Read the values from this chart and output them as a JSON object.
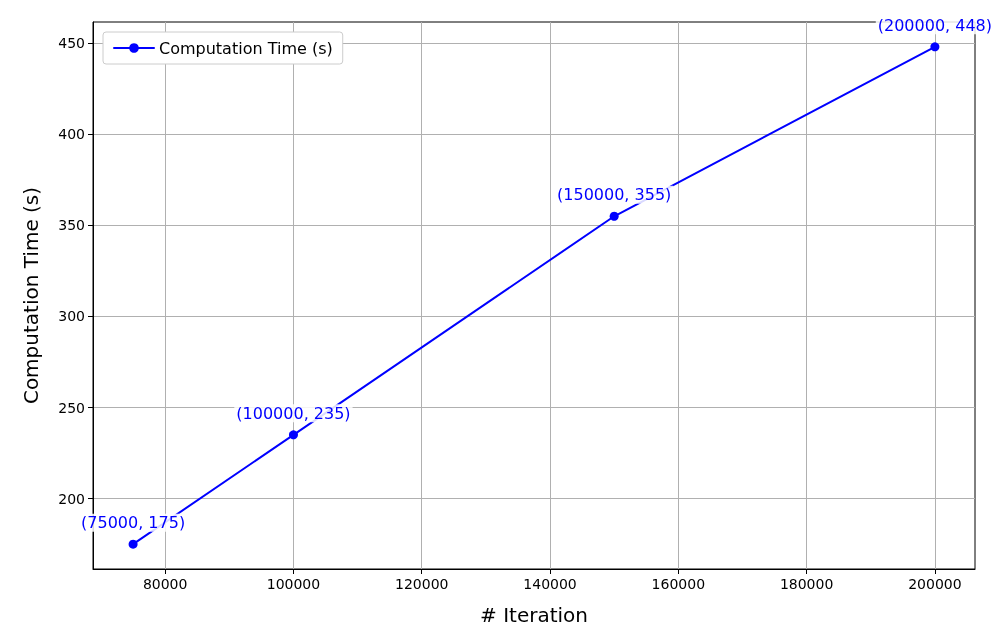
{
  "chart_data": {
    "type": "line",
    "xlabel": "# Iteration",
    "ylabel": "Computation Time (s)",
    "x": [
      75000,
      100000,
      150000,
      200000
    ],
    "series": [
      {
        "name": "Computation Time (s)",
        "color": "#0000ff",
        "values": [
          175,
          235,
          355,
          448
        ],
        "value_labels": [
          "(75000, 175)",
          "(100000, 235)",
          "(150000, 355)",
          "(200000, 448)"
        ]
      }
    ],
    "xlim": [
      68750,
      206250
    ],
    "xticks": [
      80000,
      100000,
      120000,
      140000,
      160000,
      180000,
      200000
    ],
    "ylim": [
      161.35,
      461.65
    ],
    "yticks": [
      200,
      250,
      300,
      350,
      400,
      450
    ],
    "grid": true,
    "legend": "top left",
    "marker": "circle",
    "line_style": "solid"
  }
}
